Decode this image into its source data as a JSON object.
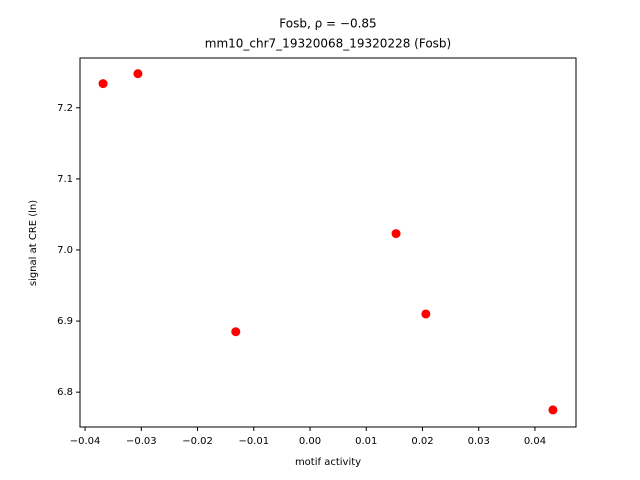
{
  "chart_data": {
    "type": "scatter",
    "title": "Fosb, ρ = −0.85",
    "subtitle": "mm10_chr7_19320068_19320228 (Fosb)",
    "x_label": "motif activity",
    "y_label": "signal at CRE (ln)",
    "x": [
      -0.0368,
      -0.0306,
      -0.0132,
      0.0153,
      0.0206,
      0.0432
    ],
    "values": [
      7.234,
      7.248,
      6.885,
      7.023,
      6.91,
      6.775
    ],
    "color": "#ff0000",
    "xlim": [
      -0.0409,
      0.0473
    ],
    "ylim": [
      6.751,
      7.27
    ],
    "xticks": [
      {
        "value": -0.04,
        "label": "−0.04"
      },
      {
        "value": -0.03,
        "label": "−0.03"
      },
      {
        "value": -0.02,
        "label": "−0.02"
      },
      {
        "value": -0.01,
        "label": "−0.01"
      },
      {
        "value": 0,
        "label": "0.00"
      },
      {
        "value": 0.01,
        "label": "0.01"
      },
      {
        "value": 0.02,
        "label": "0.02"
      },
      {
        "value": 0.03,
        "label": "0.03"
      },
      {
        "value": 0.04,
        "label": "0.04"
      }
    ],
    "yticks": [
      6.8,
      6.9,
      {
        "value": 7,
        "label": "7.0"
      },
      7.1,
      7.2
    ],
    "grid": false
  }
}
